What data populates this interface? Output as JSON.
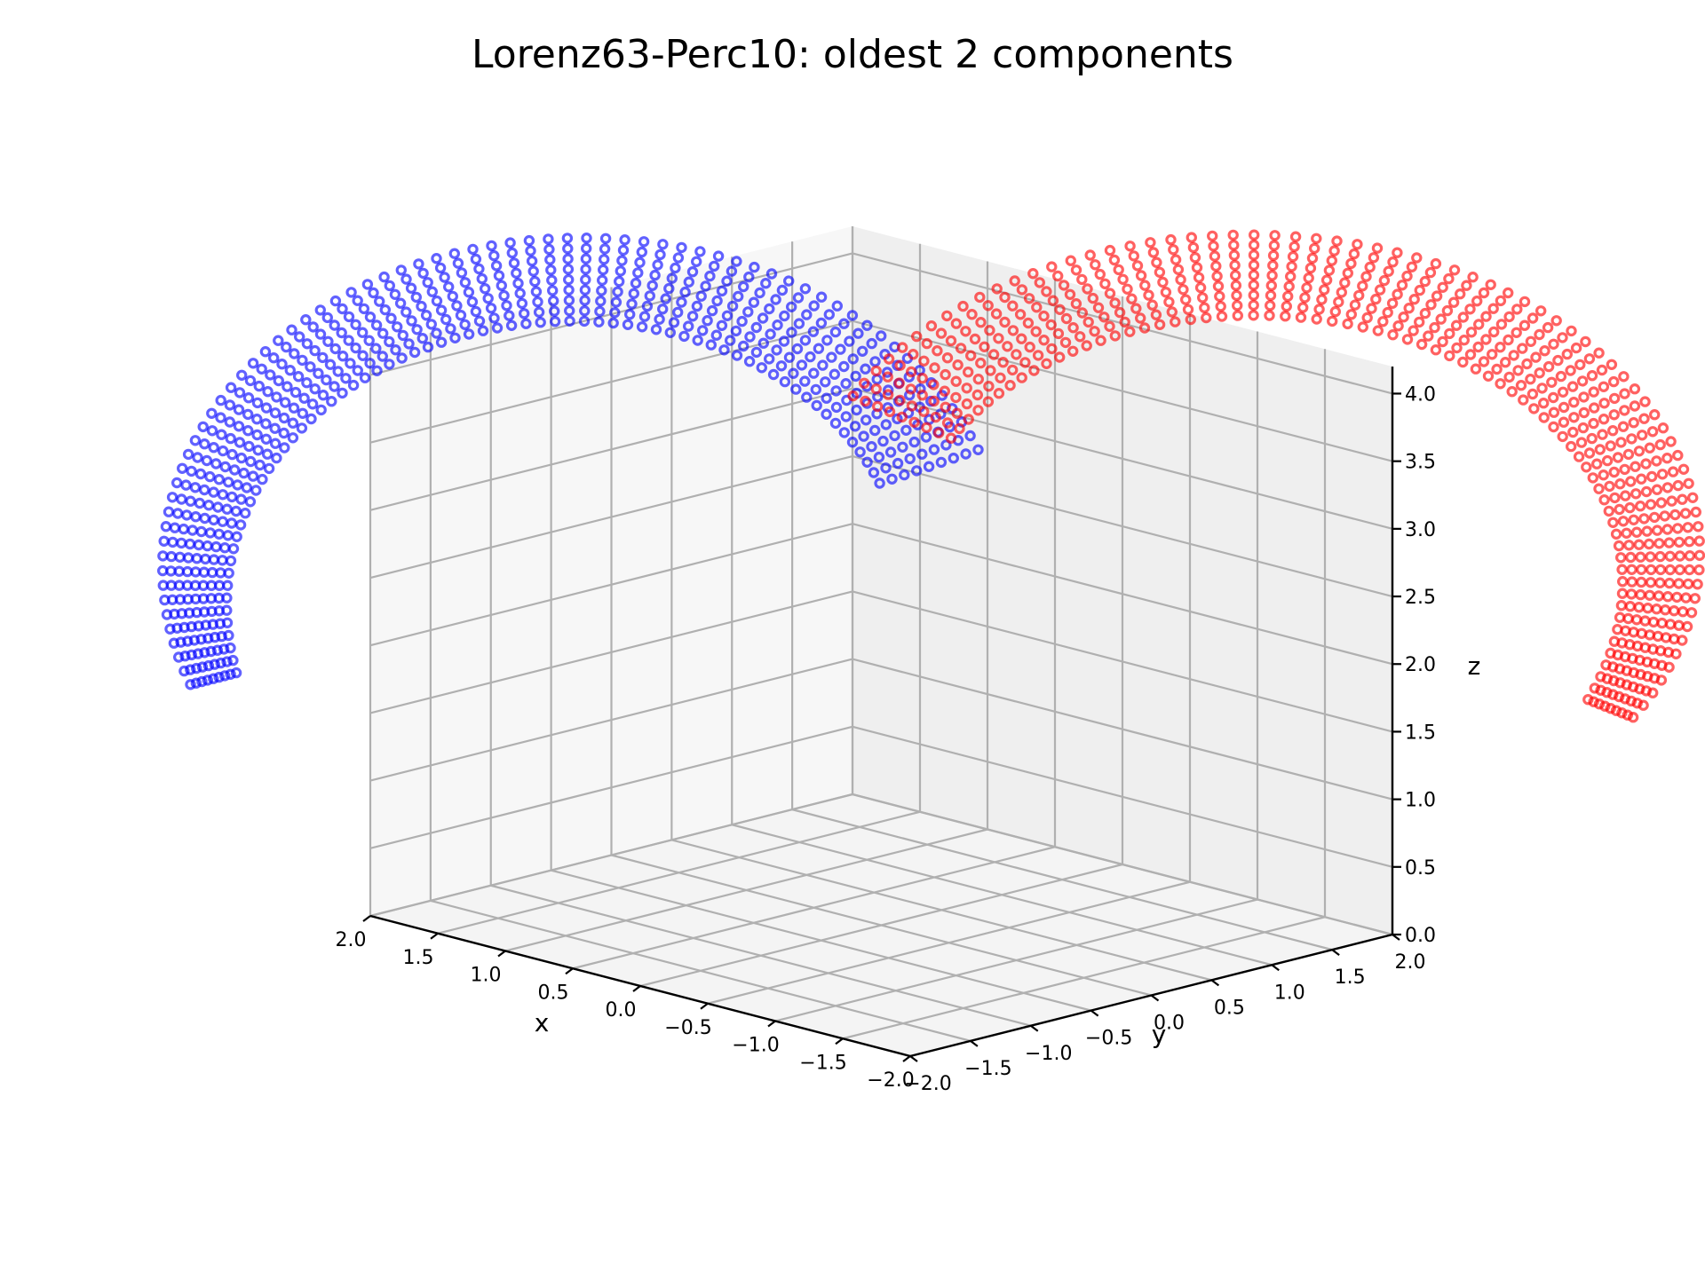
{
  "chart_data": {
    "type": "scatter",
    "projection": "3d",
    "title": "Lorenz63-Perc10: oldest 2 components",
    "xlabel": "x",
    "ylabel": "y",
    "zlabel": "z",
    "xlim": [
      -2.0,
      2.0
    ],
    "ylim": [
      -2.0,
      2.0
    ],
    "zlim": [
      0.0,
      4.2
    ],
    "grid": true,
    "x_ticks": [
      "−2.0",
      "−1.5",
      "−1.0",
      "−0.5",
      "0.0",
      "0.5",
      "1.0",
      "1.5",
      "2.0"
    ],
    "y_ticks": [
      "−2.0",
      "−1.5",
      "−1.0",
      "−0.5",
      "0.0",
      "0.5",
      "1.0",
      "1.5",
      "2.0"
    ],
    "z_ticks": [
      "0.0",
      "0.5",
      "1.0",
      "1.5",
      "2.0",
      "2.5",
      "3.0",
      "3.5",
      "4.0"
    ],
    "series": [
      {
        "color": "#0000ff"
      },
      {
        "color": "#ff0000"
      }
    ]
  }
}
